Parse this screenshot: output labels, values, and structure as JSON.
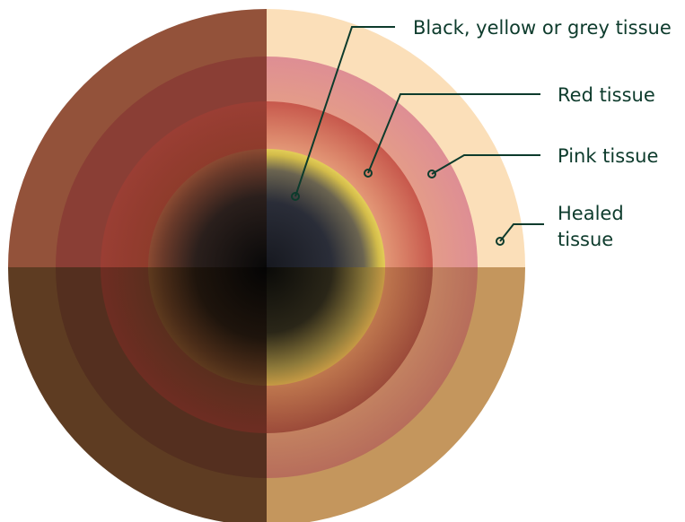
{
  "labels": {
    "black_yellow_grey": "Black, yellow or grey tissue",
    "red": "Red tissue",
    "pink": "Pink tissue",
    "healed_line1": "Healed",
    "healed_line2": "tissue"
  },
  "colors": {
    "leader_line": "#0d3b2c",
    "label_text": "#0d3b2c",
    "background": "#ffffff"
  }
}
